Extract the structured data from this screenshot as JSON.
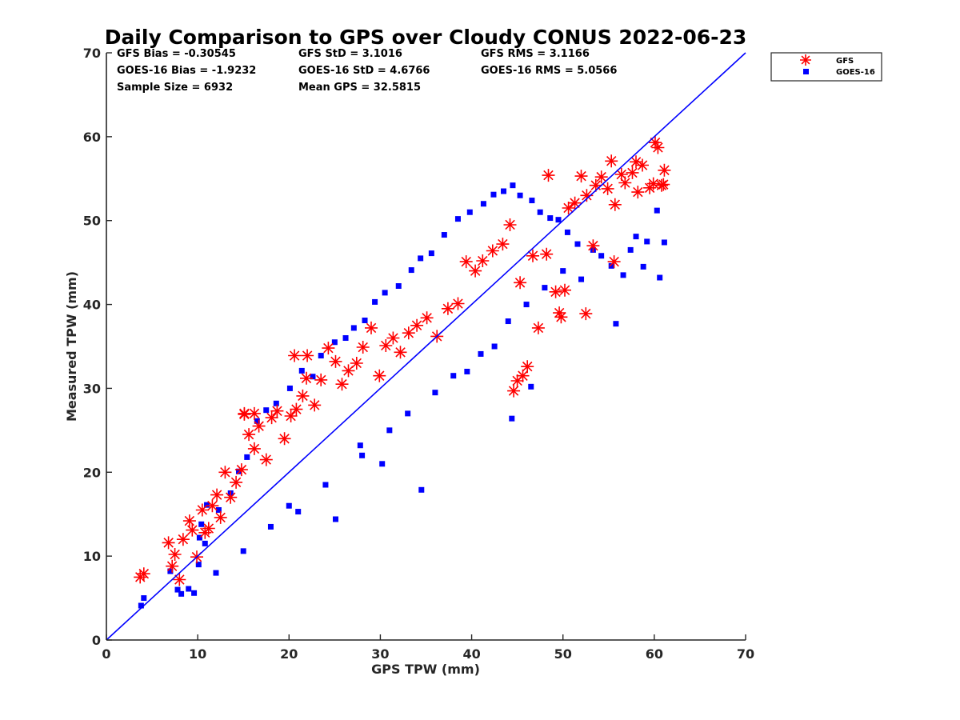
{
  "chart_data": {
    "type": "scatter",
    "title": "Daily Comparison to GPS over Cloudy CONUS 2022-06-23",
    "xlabel": "GPS TPW (mm)",
    "ylabel": "Measured TPW (mm)",
    "xlim": [
      0,
      70
    ],
    "ylim": [
      0,
      70
    ],
    "xticks": [
      "0",
      "10",
      "20",
      "30",
      "40",
      "50",
      "60",
      "70"
    ],
    "yticks": [
      "0",
      "10",
      "20",
      "30",
      "40",
      "50",
      "60",
      "70"
    ],
    "grid": false,
    "legend_position": "outside-top-right",
    "reference_line": {
      "x": [
        0,
        70
      ],
      "y": [
        0,
        70
      ],
      "color": "#0000ff"
    },
    "stats": [
      [
        "GFS Bias = -0.30545",
        "GFS StD = 3.1016",
        "GFS RMS = 3.1166"
      ],
      [
        "GOES-16 Bias = -1.9232",
        "GOES-16 StD = 4.6766",
        "GOES-16 RMS = 5.0566"
      ],
      [
        "Sample Size = 6932",
        "Mean GPS = 32.5815",
        ""
      ]
    ],
    "series": [
      {
        "name": "GOES-16",
        "color": "#0000ff",
        "marker": "square",
        "x": [
          3.8,
          4.1,
          7.0,
          7.8,
          8.2,
          9.0,
          9.6,
          10.1,
          10.8,
          10.2,
          10.4,
          11.0,
          12.3,
          13.6,
          14.5,
          15.4,
          16.5,
          17.5,
          18.6,
          20.1,
          21.4,
          22.6,
          23.5,
          25.0,
          26.2,
          27.1,
          28.3,
          29.4,
          30.5,
          32.0,
          33.4,
          34.4,
          35.6,
          37.0,
          38.5,
          39.8,
          41.3,
          42.4,
          43.5,
          44.5,
          45.3,
          46.6,
          47.5,
          48.6,
          49.5,
          50.5,
          51.6,
          53.3,
          54.2,
          55.3,
          56.6,
          58.0,
          59.2,
          60.3,
          61.1,
          60.6,
          58.8,
          57.4,
          55.8,
          44.4,
          46.5,
          34.5,
          30.2,
          27.8,
          21.0,
          25.1,
          39.5,
          42.5,
          36.0,
          41.0,
          44.0,
          48.0,
          38.0,
          31.0,
          24.0,
          18.0,
          15.0,
          12.0,
          28.0,
          33.0,
          46.0,
          50.0,
          52.0,
          20.0
        ],
        "y": [
          4.1,
          5.0,
          8.2,
          6.0,
          5.5,
          6.1,
          5.6,
          9.0,
          11.5,
          12.2,
          13.8,
          16.1,
          15.5,
          17.5,
          20.1,
          21.8,
          26.1,
          27.4,
          28.2,
          30.0,
          32.1,
          31.4,
          33.9,
          35.5,
          36.0,
          37.2,
          38.1,
          40.3,
          41.4,
          42.2,
          44.1,
          45.5,
          46.1,
          48.3,
          50.2,
          51.0,
          52.0,
          53.1,
          53.5,
          54.2,
          53.0,
          52.4,
          51.0,
          50.3,
          50.1,
          48.6,
          47.2,
          46.5,
          45.8,
          44.6,
          43.5,
          48.1,
          47.5,
          51.2,
          47.4,
          43.2,
          44.5,
          46.5,
          37.7,
          26.4,
          30.2,
          17.9,
          21.0,
          23.2,
          15.3,
          14.4,
          32.0,
          35.0,
          29.5,
          34.1,
          38.0,
          42.0,
          31.5,
          25.0,
          18.5,
          13.5,
          10.6,
          8.0,
          22.0,
          27.0,
          40.0,
          44.0,
          43.0,
          16.0
        ]
      },
      {
        "name": "GFS",
        "color": "#ff0000",
        "marker": "asterisk",
        "x": [
          3.7,
          4.1,
          6.8,
          7.2,
          7.5,
          8.0,
          8.4,
          9.1,
          9.4,
          9.9,
          10.5,
          10.8,
          11.2,
          11.6,
          12.1,
          12.5,
          13.0,
          13.6,
          14.2,
          14.8,
          15.1,
          15.6,
          16.2,
          16.7,
          17.5,
          18.1,
          18.7,
          19.5,
          20.2,
          20.8,
          21.5,
          22.0,
          22.8,
          23.5,
          24.3,
          25.1,
          25.8,
          26.5,
          27.4,
          28.1,
          29.0,
          29.9,
          30.6,
          31.4,
          32.2,
          33.1,
          34.0,
          35.1,
          36.2,
          37.4,
          38.5,
          39.4,
          40.4,
          41.2,
          42.3,
          43.4,
          44.2,
          45.0,
          44.6,
          45.6,
          46.1,
          47.3,
          48.2,
          49.2,
          49.8,
          50.6,
          51.3,
          52.0,
          52.6,
          53.3,
          53.6,
          54.2,
          54.9,
          55.3,
          55.7,
          56.4,
          56.8,
          57.6,
          58.2,
          58.7,
          59.5,
          60.1,
          60.4,
          61.0,
          61.1,
          60.8,
          59.9,
          58.0,
          55.6,
          52.5,
          50.2,
          49.6,
          48.4,
          46.7,
          45.3,
          20.6,
          21.9,
          15.1,
          16.2
        ],
        "y": [
          7.5,
          7.9,
          11.6,
          8.8,
          10.2,
          7.2,
          12.0,
          14.2,
          13.1,
          9.9,
          15.5,
          12.8,
          13.3,
          16.0,
          17.3,
          14.6,
          20.0,
          17.0,
          18.8,
          20.3,
          27.0,
          24.5,
          22.8,
          25.5,
          21.5,
          26.5,
          27.3,
          24.0,
          26.7,
          27.5,
          29.1,
          33.9,
          28.0,
          31.0,
          34.8,
          33.2,
          30.5,
          32.1,
          33.0,
          34.9,
          37.2,
          31.5,
          35.1,
          36.0,
          34.3,
          36.6,
          37.5,
          38.4,
          36.2,
          39.5,
          40.1,
          45.1,
          44.0,
          45.2,
          46.4,
          47.2,
          49.5,
          30.9,
          29.7,
          31.5,
          32.6,
          37.2,
          46.0,
          41.5,
          38.5,
          51.5,
          52.1,
          55.3,
          53.0,
          47.0,
          54.2,
          55.2,
          53.8,
          57.1,
          51.9,
          55.5,
          54.5,
          55.7,
          53.4,
          56.6,
          53.9,
          59.3,
          58.7,
          54.3,
          56.0,
          54.2,
          54.4,
          57.0,
          45.1,
          38.9,
          41.7,
          39.0,
          55.4,
          45.8,
          42.6,
          33.9,
          31.2,
          26.9,
          27.0
        ]
      }
    ]
  }
}
